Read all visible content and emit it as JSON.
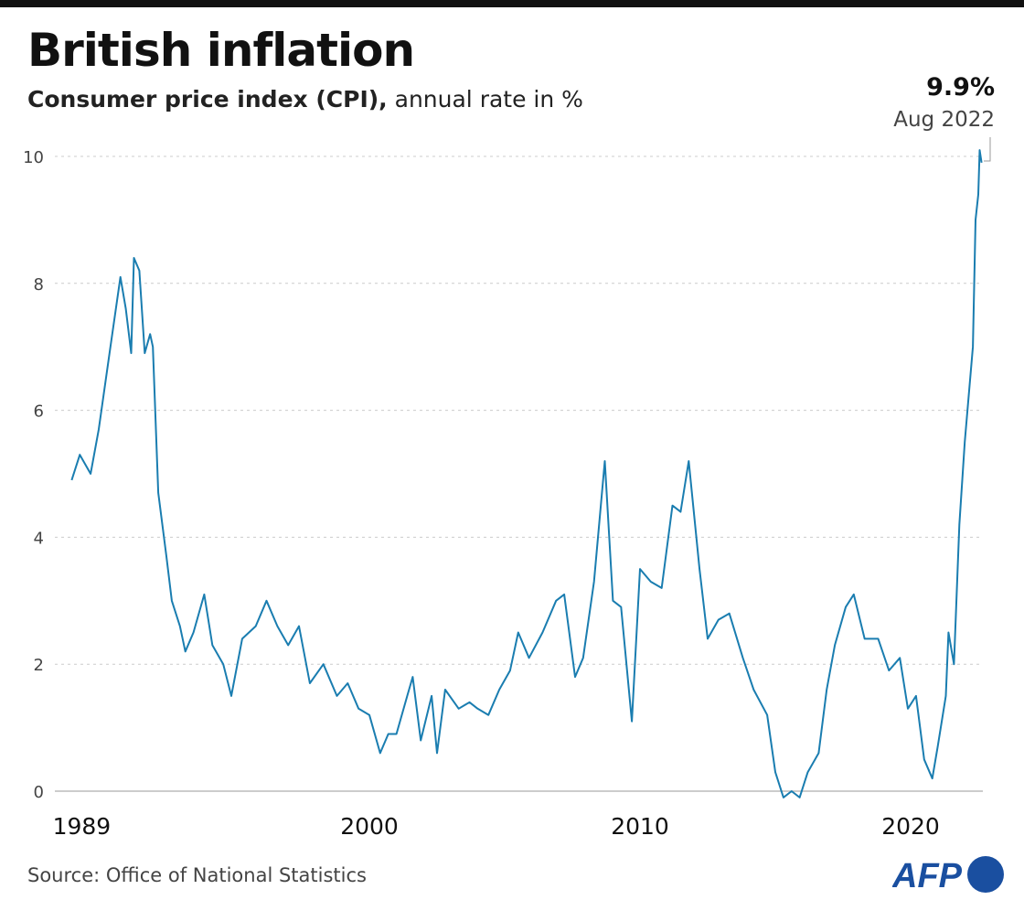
{
  "chart_data": {
    "type": "line",
    "title": "British inflation",
    "subtitle_bold": "Consumer price index (CPI),",
    "subtitle_rest": " annual rate in %",
    "xlabel": "",
    "ylabel": "",
    "xlim": [
      1989,
      2022.67
    ],
    "ylim": [
      0,
      10
    ],
    "x_ticks": [
      "1989",
      "2000",
      "2010",
      "2020"
    ],
    "y_ticks": [
      "0",
      "2",
      "4",
      "6",
      "8",
      "10"
    ],
    "grid": "horizontal dotted",
    "line_color": "#1a7db0",
    "annotation": {
      "value": "9.9%",
      "date": "Aug 2022"
    },
    "points": [
      [
        1989.0,
        4.9
      ],
      [
        1989.3,
        5.3
      ],
      [
        1989.7,
        5.0
      ],
      [
        1990.0,
        5.7
      ],
      [
        1990.4,
        6.9
      ],
      [
        1990.8,
        8.1
      ],
      [
        1991.0,
        7.6
      ],
      [
        1991.2,
        6.9
      ],
      [
        1991.3,
        8.4
      ],
      [
        1991.5,
        8.2
      ],
      [
        1991.7,
        6.9
      ],
      [
        1991.9,
        7.2
      ],
      [
        1992.0,
        7.0
      ],
      [
        1992.2,
        4.7
      ],
      [
        1992.5,
        3.7
      ],
      [
        1992.7,
        3.0
      ],
      [
        1993.0,
        2.6
      ],
      [
        1993.2,
        2.2
      ],
      [
        1993.5,
        2.5
      ],
      [
        1993.9,
        3.1
      ],
      [
        1994.2,
        2.3
      ],
      [
        1994.6,
        2.0
      ],
      [
        1994.9,
        1.5
      ],
      [
        1995.3,
        2.4
      ],
      [
        1995.8,
        2.6
      ],
      [
        1996.2,
        3.0
      ],
      [
        1996.6,
        2.6
      ],
      [
        1997.0,
        2.3
      ],
      [
        1997.4,
        2.6
      ],
      [
        1997.8,
        1.7
      ],
      [
        1998.3,
        2.0
      ],
      [
        1998.8,
        1.5
      ],
      [
        1999.2,
        1.7
      ],
      [
        1999.6,
        1.3
      ],
      [
        2000.0,
        1.2
      ],
      [
        2000.4,
        0.6
      ],
      [
        2000.7,
        0.9
      ],
      [
        2001.0,
        0.9
      ],
      [
        2001.4,
        1.5
      ],
      [
        2001.6,
        1.8
      ],
      [
        2001.9,
        0.8
      ],
      [
        2002.3,
        1.5
      ],
      [
        2002.5,
        0.6
      ],
      [
        2002.8,
        1.6
      ],
      [
        2003.3,
        1.3
      ],
      [
        2003.7,
        1.4
      ],
      [
        2004.0,
        1.3
      ],
      [
        2004.4,
        1.2
      ],
      [
        2004.8,
        1.6
      ],
      [
        2005.2,
        1.9
      ],
      [
        2005.5,
        2.5
      ],
      [
        2005.9,
        2.1
      ],
      [
        2006.4,
        2.5
      ],
      [
        2006.9,
        3.0
      ],
      [
        2007.2,
        3.1
      ],
      [
        2007.6,
        1.8
      ],
      [
        2007.9,
        2.1
      ],
      [
        2008.3,
        3.3
      ],
      [
        2008.7,
        5.2
      ],
      [
        2009.0,
        3.0
      ],
      [
        2009.3,
        2.9
      ],
      [
        2009.7,
        1.1
      ],
      [
        2010.0,
        3.5
      ],
      [
        2010.4,
        3.3
      ],
      [
        2010.8,
        3.2
      ],
      [
        2011.2,
        4.5
      ],
      [
        2011.5,
        4.4
      ],
      [
        2011.8,
        5.2
      ],
      [
        2012.2,
        3.5
      ],
      [
        2012.5,
        2.4
      ],
      [
        2012.9,
        2.7
      ],
      [
        2013.3,
        2.8
      ],
      [
        2013.8,
        2.1
      ],
      [
        2014.2,
        1.6
      ],
      [
        2014.7,
        1.2
      ],
      [
        2015.0,
        0.3
      ],
      [
        2015.3,
        -0.1
      ],
      [
        2015.6,
        0.0
      ],
      [
        2015.9,
        -0.1
      ],
      [
        2016.2,
        0.3
      ],
      [
        2016.6,
        0.6
      ],
      [
        2016.9,
        1.6
      ],
      [
        2017.2,
        2.3
      ],
      [
        2017.6,
        2.9
      ],
      [
        2017.9,
        3.1
      ],
      [
        2018.3,
        2.4
      ],
      [
        2018.8,
        2.4
      ],
      [
        2019.2,
        1.9
      ],
      [
        2019.6,
        2.1
      ],
      [
        2019.9,
        1.3
      ],
      [
        2020.2,
        1.5
      ],
      [
        2020.5,
        0.5
      ],
      [
        2020.8,
        0.2
      ],
      [
        2021.0,
        0.7
      ],
      [
        2021.3,
        1.5
      ],
      [
        2021.4,
        2.5
      ],
      [
        2021.6,
        2.0
      ],
      [
        2021.8,
        4.2
      ],
      [
        2022.0,
        5.5
      ],
      [
        2022.3,
        7.0
      ],
      [
        2022.4,
        9.0
      ],
      [
        2022.5,
        9.4
      ],
      [
        2022.55,
        10.1
      ],
      [
        2022.62,
        9.9
      ]
    ]
  },
  "footer": {
    "source": "Source: Office of National Statistics",
    "logo": "AFP"
  },
  "colors": {
    "logo_blue": "#1a4fa0"
  }
}
